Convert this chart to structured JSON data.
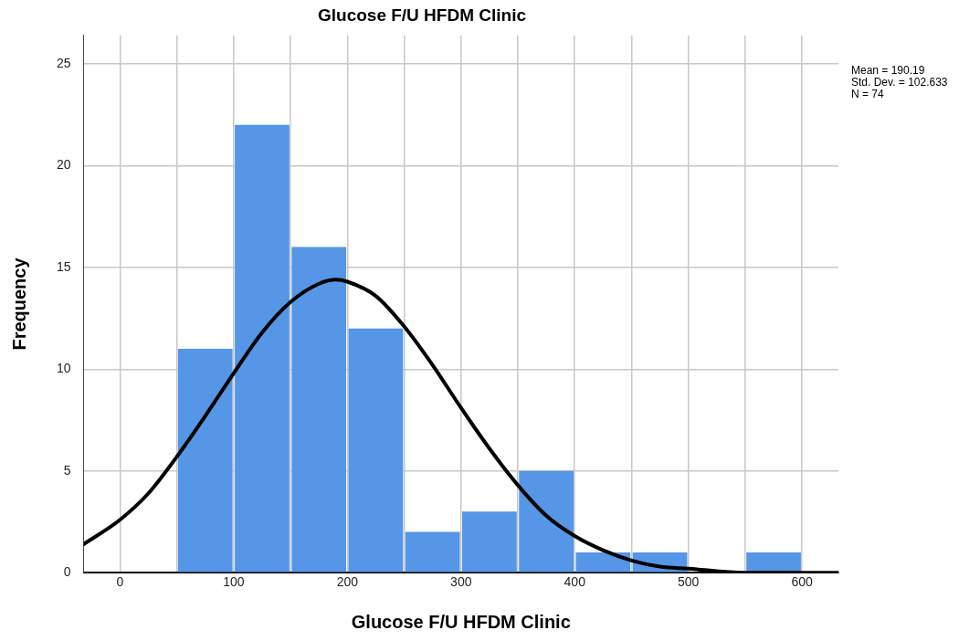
{
  "chart_data": {
    "type": "histogram",
    "title": "Glucose F/U HFDM Clinic",
    "xlabel": "Glucose F/U HFDM Clinic",
    "ylabel": "Frequency",
    "bins": [
      50,
      100,
      150,
      200,
      250,
      300,
      350,
      400,
      450,
      500,
      550,
      600
    ],
    "values": [
      11,
      22,
      16,
      12,
      2,
      3,
      5,
      1,
      1,
      0,
      1
    ],
    "color": "#5596e6",
    "series": [
      {
        "type": "line",
        "color": "#000000",
        "x": [
          -32,
          0,
          25,
          50,
          75,
          100,
          125,
          150,
          175,
          190,
          200,
          225,
          250,
          275,
          300,
          325,
          350,
          375,
          400,
          425,
          450,
          475,
          500,
          550,
          600,
          632
        ],
        "values": [
          1.4,
          2.6,
          3.9,
          5.7,
          7.7,
          9.8,
          11.8,
          13.3,
          14.2,
          14.4,
          14.3,
          13.6,
          12.1,
          10.2,
          8.1,
          6.1,
          4.3,
          2.8,
          1.8,
          1.1,
          0.6,
          0.3,
          0.2,
          0.0,
          0.0,
          0.0
        ]
      }
    ],
    "xlim": [
      -32,
      632
    ],
    "xticks": [
      0,
      {
        "value": 50,
        "label": null
      },
      100,
      {
        "value": 150,
        "label": null
      },
      200,
      {
        "value": 250,
        "label": null
      },
      300,
      {
        "value": 350,
        "label": null
      },
      400,
      {
        "value": 450,
        "label": null
      },
      500,
      {
        "value": 550,
        "label": null
      },
      600
    ],
    "ylim": [
      0,
      26.4
    ],
    "yticks": [
      0,
      5,
      10,
      15,
      20,
      25
    ],
    "grid": true,
    "legend": false,
    "marker": "none",
    "line_style": "solid",
    "annotations": [
      "Mean = 190.19",
      "Std. Dev. = 102.633",
      "N = 74"
    ]
  }
}
